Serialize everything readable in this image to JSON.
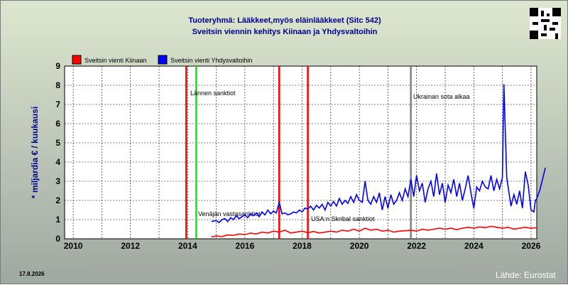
{
  "header": {
    "title_line1": "Tuoteryhmä: Lääkkeet,myös eläinlääkkeet (Sitc 542)",
    "title_line2": "Sveitsin viennin kehitys  Kiinaan ja Yhdysvaltoihin"
  },
  "footer": {
    "date": "17.8.2026",
    "source": "Lähde: Eurostat"
  },
  "chart_data": {
    "type": "line",
    "title": "Tuoteryhmä: Lääkkeet,myös eläinlääkkeet (Sitc 542) — Sveitsin viennin kehitys  Kiinaan ja Yhdysvaltoihin",
    "ylabel": "* miljardia € / kuukausi",
    "xlabel": "",
    "xlim": [
      2009.7,
      2026.2
    ],
    "ylim": [
      0,
      9
    ],
    "x_ticks": [
      2010,
      2012,
      2014,
      2016,
      2018,
      2020,
      2022,
      2024,
      2026
    ],
    "y_ticks": [
      0,
      1,
      2,
      3,
      4,
      5,
      6,
      7,
      8,
      9
    ],
    "grid": true,
    "legend_position": "top-left",
    "series": [
      {
        "name": "Sveitsin vienti Kiinaan",
        "color": "#ff0000",
        "points": [
          [
            2014.83,
            0.1
          ],
          [
            2015.0,
            0.15
          ],
          [
            2015.2,
            0.12
          ],
          [
            2015.4,
            0.2
          ],
          [
            2015.6,
            0.18
          ],
          [
            2015.8,
            0.25
          ],
          [
            2016.0,
            0.22
          ],
          [
            2016.2,
            0.3
          ],
          [
            2016.4,
            0.25
          ],
          [
            2016.6,
            0.35
          ],
          [
            2016.8,
            0.3
          ],
          [
            2017.0,
            0.4
          ],
          [
            2017.2,
            0.35
          ],
          [
            2017.4,
            0.45
          ],
          [
            2017.6,
            0.3
          ],
          [
            2017.8,
            0.35
          ],
          [
            2018.0,
            0.4
          ],
          [
            2018.2,
            0.32
          ],
          [
            2018.4,
            0.38
          ],
          [
            2018.6,
            0.3
          ],
          [
            2018.8,
            0.35
          ],
          [
            2019.0,
            0.4
          ],
          [
            2019.2,
            0.35
          ],
          [
            2019.4,
            0.45
          ],
          [
            2019.6,
            0.4
          ],
          [
            2019.8,
            0.5
          ],
          [
            2020.0,
            0.4
          ],
          [
            2020.2,
            0.55
          ],
          [
            2020.4,
            0.45
          ],
          [
            2020.6,
            0.5
          ],
          [
            2020.8,
            0.4
          ],
          [
            2021.0,
            0.45
          ],
          [
            2021.2,
            0.35
          ],
          [
            2021.4,
            0.4
          ],
          [
            2021.6,
            0.42
          ],
          [
            2021.8,
            0.45
          ],
          [
            2022.0,
            0.4
          ],
          [
            2022.2,
            0.5
          ],
          [
            2022.4,
            0.45
          ],
          [
            2022.6,
            0.5
          ],
          [
            2022.8,
            0.55
          ],
          [
            2023.0,
            0.5
          ],
          [
            2023.2,
            0.55
          ],
          [
            2023.4,
            0.48
          ],
          [
            2023.6,
            0.55
          ],
          [
            2023.8,
            0.6
          ],
          [
            2024.0,
            0.55
          ],
          [
            2024.2,
            0.62
          ],
          [
            2024.4,
            0.58
          ],
          [
            2024.6,
            0.65
          ],
          [
            2024.8,
            0.6
          ],
          [
            2025.0,
            0.55
          ],
          [
            2025.2,
            0.6
          ],
          [
            2025.4,
            0.5
          ],
          [
            2025.6,
            0.55
          ],
          [
            2025.8,
            0.6
          ],
          [
            2026.0,
            0.55
          ],
          [
            2026.2,
            0.58
          ]
        ]
      },
      {
        "name": "Sveitsin vienti Yhdysvaltoihin",
        "color": "#0000ff",
        "points": [
          [
            2014.83,
            0.9
          ],
          [
            2015.0,
            0.95
          ],
          [
            2015.1,
            0.85
          ],
          [
            2015.2,
            1.0
          ],
          [
            2015.3,
            1.05
          ],
          [
            2015.4,
            0.9
          ],
          [
            2015.5,
            1.1
          ],
          [
            2015.6,
            1.0
          ],
          [
            2015.7,
            1.2
          ],
          [
            2015.8,
            1.05
          ],
          [
            2015.9,
            1.15
          ],
          [
            2016.0,
            1.25
          ],
          [
            2016.1,
            1.1
          ],
          [
            2016.2,
            1.3
          ],
          [
            2016.3,
            1.2
          ],
          [
            2016.4,
            1.35
          ],
          [
            2016.5,
            1.15
          ],
          [
            2016.6,
            1.4
          ],
          [
            2016.7,
            1.25
          ],
          [
            2016.8,
            1.5
          ],
          [
            2016.9,
            1.3
          ],
          [
            2017.0,
            1.45
          ],
          [
            2017.1,
            1.35
          ],
          [
            2017.2,
            1.9
          ],
          [
            2017.3,
            1.3
          ],
          [
            2017.4,
            1.35
          ],
          [
            2017.5,
            1.25
          ],
          [
            2017.6,
            1.3
          ],
          [
            2017.7,
            1.4
          ],
          [
            2017.8,
            1.35
          ],
          [
            2017.9,
            1.5
          ],
          [
            2018.0,
            1.4
          ],
          [
            2018.1,
            1.6
          ],
          [
            2018.2,
            1.55
          ],
          [
            2018.3,
            1.7
          ],
          [
            2018.4,
            1.5
          ],
          [
            2018.5,
            1.75
          ],
          [
            2018.6,
            1.6
          ],
          [
            2018.7,
            1.8
          ],
          [
            2018.8,
            1.5
          ],
          [
            2018.9,
            1.9
          ],
          [
            2019.0,
            1.7
          ],
          [
            2019.1,
            1.95
          ],
          [
            2019.2,
            1.7
          ],
          [
            2019.3,
            2.1
          ],
          [
            2019.4,
            1.8
          ],
          [
            2019.5,
            2.0
          ],
          [
            2019.6,
            1.85
          ],
          [
            2019.7,
            2.2
          ],
          [
            2019.8,
            1.9
          ],
          [
            2019.9,
            2.3
          ],
          [
            2020.0,
            2.0
          ],
          [
            2020.1,
            1.9
          ],
          [
            2020.2,
            3.0
          ],
          [
            2020.3,
            2.0
          ],
          [
            2020.4,
            1.8
          ],
          [
            2020.5,
            2.2
          ],
          [
            2020.6,
            1.9
          ],
          [
            2020.7,
            2.4
          ],
          [
            2020.8,
            1.5
          ],
          [
            2020.9,
            2.2
          ],
          [
            2021.0,
            1.6
          ],
          [
            2021.1,
            2.3
          ],
          [
            2021.2,
            1.8
          ],
          [
            2021.3,
            2.0
          ],
          [
            2021.4,
            2.4
          ],
          [
            2021.5,
            2.0
          ],
          [
            2021.6,
            2.6
          ],
          [
            2021.7,
            2.2
          ],
          [
            2021.8,
            3.1
          ],
          [
            2021.9,
            2.2
          ],
          [
            2022.0,
            3.3
          ],
          [
            2022.1,
            2.5
          ],
          [
            2022.2,
            2.9
          ],
          [
            2022.3,
            1.9
          ],
          [
            2022.4,
            2.6
          ],
          [
            2022.5,
            3.0
          ],
          [
            2022.6,
            2.2
          ],
          [
            2022.7,
            3.4
          ],
          [
            2022.8,
            2.3
          ],
          [
            2022.9,
            2.9
          ],
          [
            2023.0,
            1.9
          ],
          [
            2023.1,
            2.8
          ],
          [
            2023.2,
            2.4
          ],
          [
            2023.3,
            3.1
          ],
          [
            2023.4,
            2.2
          ],
          [
            2023.5,
            2.9
          ],
          [
            2023.6,
            2.0
          ],
          [
            2023.7,
            2.6
          ],
          [
            2023.8,
            3.3
          ],
          [
            2023.9,
            2.4
          ],
          [
            2024.0,
            1.6
          ],
          [
            2024.1,
            2.7
          ],
          [
            2024.2,
            2.5
          ],
          [
            2024.3,
            3.0
          ],
          [
            2024.4,
            2.7
          ],
          [
            2024.5,
            2.6
          ],
          [
            2024.6,
            3.3
          ],
          [
            2024.7,
            2.5
          ],
          [
            2024.8,
            3.1
          ],
          [
            2024.9,
            2.6
          ],
          [
            2025.0,
            3.2
          ],
          [
            2025.05,
            8.05
          ],
          [
            2025.15,
            3.2
          ],
          [
            2025.3,
            1.7
          ],
          [
            2025.4,
            2.3
          ],
          [
            2025.5,
            1.8
          ],
          [
            2025.6,
            2.5
          ],
          [
            2025.7,
            1.6
          ],
          [
            2025.8,
            3.5
          ],
          [
            2025.9,
            2.8
          ],
          [
            2026.0,
            1.5
          ],
          [
            2026.1,
            1.4
          ],
          [
            2026.15,
            2.0
          ],
          [
            2026.2,
            2.1
          ],
          [
            2026.3,
            2.5
          ],
          [
            2026.4,
            3.1
          ],
          [
            2026.5,
            3.7
          ]
        ]
      }
    ],
    "events": [
      {
        "x": 2013.95,
        "color": "#ff0000",
        "label": ""
      },
      {
        "x": 2014.3,
        "color": "#00ee00",
        "label": "Lännen sanktiot"
      },
      {
        "x": 2017.2,
        "color": "#ff0000",
        "label": "Venäjän vastasanktiot"
      },
      {
        "x": 2018.2,
        "color": "#ff0000",
        "label": "USA:n Skribal sanktiot"
      },
      {
        "x": 2021.8,
        "color": "#808080",
        "label": "Ukrainan sota alkaa"
      }
    ]
  }
}
